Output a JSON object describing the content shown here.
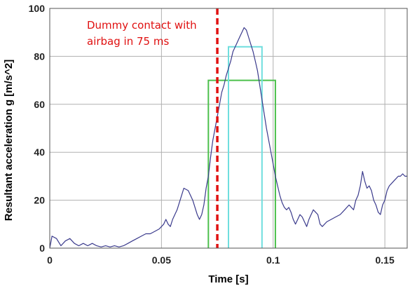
{
  "chart_data": {
    "type": "line",
    "xlabel": "Time [s]",
    "ylabel": "Resultant acceleration g [m/s^2]",
    "xlim": [
      0,
      0.16
    ],
    "ylim": [
      0,
      100
    ],
    "grid": true,
    "x_ticks": [
      0,
      0.05,
      0.1,
      0.15
    ],
    "x_tick_labels": [
      "0",
      "0.05",
      "0.1",
      "0.15"
    ],
    "y_ticks": [
      0,
      20,
      40,
      60,
      80,
      100
    ],
    "y_tick_labels": [
      "0",
      "20",
      "40",
      "60",
      "80",
      "100"
    ],
    "annotation": {
      "lines": [
        "Dummy contact with",
        "airbag in 75 ms"
      ],
      "x": 0.075,
      "color": "#e01010"
    },
    "colors": {
      "series": "#3a3a8c",
      "green_box": "#4cc04c",
      "cyan_box": "#6fdede",
      "grid": "#b0b0b0"
    },
    "series": [
      {
        "values": [
          [
            0,
            0
          ],
          [
            0.001,
            5
          ],
          [
            0.003,
            4
          ],
          [
            0.005,
            1
          ],
          [
            0.007,
            3
          ],
          [
            0.009,
            4
          ],
          [
            0.011,
            2
          ],
          [
            0.013,
            1
          ],
          [
            0.015,
            2
          ],
          [
            0.017,
            1
          ],
          [
            0.019,
            2
          ],
          [
            0.021,
            1
          ],
          [
            0.023,
            0.5
          ],
          [
            0.025,
            1
          ],
          [
            0.027,
            0.5
          ],
          [
            0.029,
            1
          ],
          [
            0.031,
            0.5
          ],
          [
            0.033,
            1
          ],
          [
            0.035,
            2
          ],
          [
            0.037,
            3
          ],
          [
            0.039,
            4
          ],
          [
            0.041,
            5
          ],
          [
            0.043,
            6
          ],
          [
            0.045,
            6
          ],
          [
            0.047,
            7
          ],
          [
            0.049,
            8
          ],
          [
            0.051,
            10
          ],
          [
            0.052,
            12
          ],
          [
            0.053,
            10
          ],
          [
            0.054,
            9
          ],
          [
            0.055,
            12
          ],
          [
            0.057,
            16
          ],
          [
            0.059,
            22
          ],
          [
            0.06,
            25
          ],
          [
            0.062,
            24
          ],
          [
            0.064,
            20
          ],
          [
            0.066,
            14
          ],
          [
            0.067,
            12
          ],
          [
            0.068,
            14
          ],
          [
            0.069,
            18
          ],
          [
            0.07,
            25
          ],
          [
            0.071,
            30
          ],
          [
            0.072,
            38
          ],
          [
            0.073,
            45
          ],
          [
            0.074,
            50
          ],
          [
            0.075,
            55
          ],
          [
            0.076,
            60
          ],
          [
            0.077,
            65
          ],
          [
            0.078,
            68
          ],
          [
            0.079,
            72
          ],
          [
            0.08,
            75
          ],
          [
            0.081,
            78
          ],
          [
            0.082,
            82
          ],
          [
            0.083,
            84
          ],
          [
            0.084,
            86
          ],
          [
            0.085,
            88
          ],
          [
            0.086,
            90
          ],
          [
            0.087,
            92
          ],
          [
            0.088,
            91
          ],
          [
            0.089,
            88
          ],
          [
            0.09,
            85
          ],
          [
            0.091,
            82
          ],
          [
            0.092,
            78
          ],
          [
            0.093,
            74
          ],
          [
            0.094,
            68
          ],
          [
            0.095,
            62
          ],
          [
            0.096,
            56
          ],
          [
            0.097,
            50
          ],
          [
            0.098,
            45
          ],
          [
            0.099,
            40
          ],
          [
            0.1,
            35
          ],
          [
            0.101,
            30
          ],
          [
            0.102,
            26
          ],
          [
            0.103,
            22
          ],
          [
            0.104,
            19
          ],
          [
            0.105,
            17
          ],
          [
            0.106,
            16
          ],
          [
            0.107,
            17
          ],
          [
            0.108,
            15
          ],
          [
            0.109,
            12
          ],
          [
            0.11,
            10
          ],
          [
            0.111,
            12
          ],
          [
            0.112,
            14
          ],
          [
            0.113,
            13
          ],
          [
            0.114,
            11
          ],
          [
            0.115,
            9
          ],
          [
            0.116,
            12
          ],
          [
            0.117,
            14
          ],
          [
            0.118,
            16
          ],
          [
            0.119,
            15
          ],
          [
            0.12,
            14
          ],
          [
            0.121,
            10
          ],
          [
            0.122,
            9
          ],
          [
            0.124,
            11
          ],
          [
            0.126,
            12
          ],
          [
            0.128,
            13
          ],
          [
            0.13,
            14
          ],
          [
            0.132,
            16
          ],
          [
            0.134,
            18
          ],
          [
            0.135,
            17
          ],
          [
            0.136,
            16
          ],
          [
            0.137,
            20
          ],
          [
            0.138,
            22
          ],
          [
            0.139,
            26
          ],
          [
            0.14,
            32
          ],
          [
            0.141,
            28
          ],
          [
            0.142,
            25
          ],
          [
            0.143,
            26
          ],
          [
            0.144,
            24
          ],
          [
            0.145,
            20
          ],
          [
            0.146,
            18
          ],
          [
            0.147,
            15
          ],
          [
            0.148,
            14
          ],
          [
            0.149,
            18
          ],
          [
            0.15,
            20
          ],
          [
            0.151,
            24
          ],
          [
            0.152,
            26
          ],
          [
            0.153,
            27
          ],
          [
            0.154,
            28
          ],
          [
            0.155,
            29
          ],
          [
            0.156,
            30
          ],
          [
            0.157,
            30
          ],
          [
            0.158,
            31
          ],
          [
            0.159,
            30
          ],
          [
            0.16,
            30
          ]
        ]
      }
    ],
    "boxes": [
      {
        "color": "green",
        "x0": 0.071,
        "x1": 0.101,
        "y": 70
      },
      {
        "color": "cyan",
        "x0": 0.08,
        "x1": 0.095,
        "y": 84
      }
    ]
  }
}
